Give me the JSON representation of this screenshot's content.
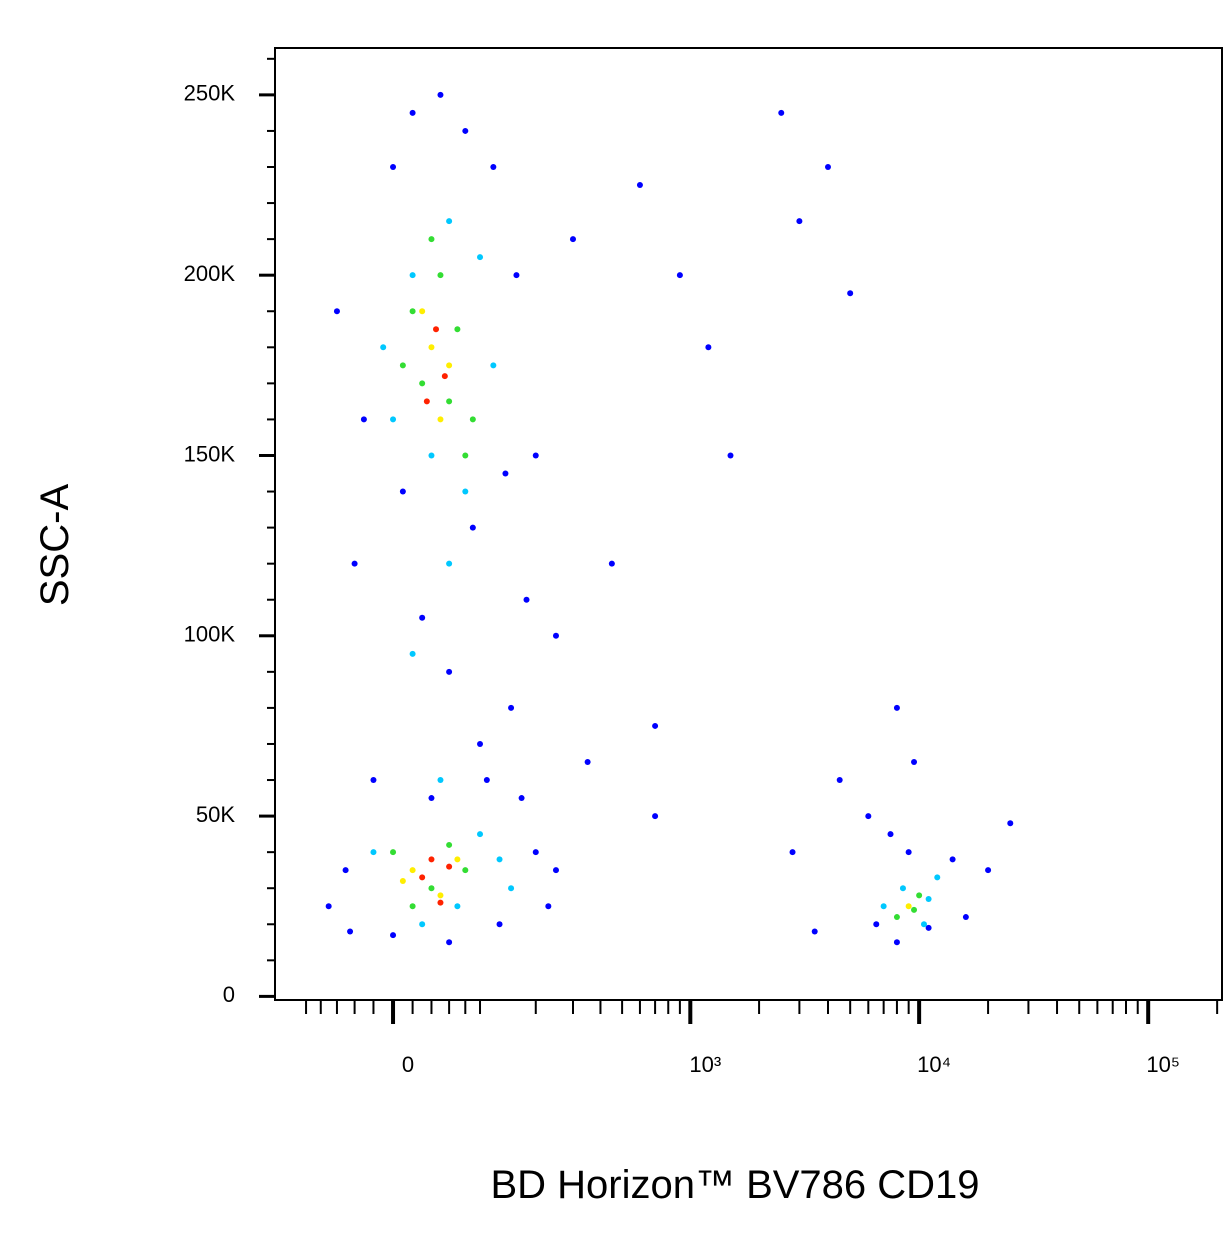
{
  "chart_data": {
    "type": "scatter",
    "x_label": "BD Horizon™ BV786 CD19",
    "y_label": "SSC-A",
    "xscale": "biexponential",
    "xlim": [
      -150,
      210000
    ],
    "ylim": [
      -1000,
      263000
    ],
    "xticks": [
      0,
      {
        "value": 1000,
        "label": "10³"
      },
      {
        "value": 10000,
        "label": "10⁴"
      },
      {
        "value": 100000,
        "label": "10⁵"
      }
    ],
    "xminorticks": [
      -100,
      -80,
      -60,
      -40,
      -20,
      20,
      40,
      60,
      80,
      100,
      200,
      300,
      400,
      500,
      600,
      700,
      800,
      900,
      2000,
      3000,
      4000,
      5000,
      6000,
      7000,
      8000,
      9000,
      20000,
      30000,
      40000,
      50000,
      60000,
      70000,
      80000,
      90000,
      200000
    ],
    "yticks": [
      0,
      {
        "value": 50000,
        "label": "50K"
      },
      {
        "value": 100000,
        "label": "100K"
      },
      {
        "value": 150000,
        "label": "150K"
      },
      {
        "value": 200000,
        "label": "200K"
      },
      {
        "value": 250000,
        "label": "250K"
      }
    ],
    "yminorticks": [
      10000,
      20000,
      30000,
      40000,
      60000,
      70000,
      80000,
      90000,
      110000,
      120000,
      130000,
      140000,
      160000,
      170000,
      180000,
      190000,
      210000,
      220000,
      230000,
      240000,
      260000
    ],
    "series": [
      {
        "color": "#0000ff",
        "x": [
          -60,
          -40,
          -20,
          0,
          20,
          50,
          80,
          120,
          160,
          200,
          180,
          150,
          100,
          60,
          30,
          10,
          -30,
          -50,
          -70,
          200,
          250,
          230,
          130,
          60,
          0,
          -45,
          90,
          140,
          40,
          110,
          170,
          300,
          600,
          900,
          1200,
          3000,
          5000,
          2500,
          4000,
          1500,
          450,
          700,
          2800,
          4500,
          6000,
          7500,
          9000,
          14000,
          20000,
          25000,
          6500,
          11000,
          8000,
          16000,
          3500,
          350,
          700,
          8000,
          9500,
          250
        ],
        "values": [
          190000,
          120000,
          60000,
          230000,
          245000,
          250000,
          240000,
          230000,
          200000,
          150000,
          110000,
          80000,
          70000,
          90000,
          105000,
          140000,
          160000,
          35000,
          25000,
          40000,
          35000,
          25000,
          20000,
          15000,
          17000,
          18000,
          130000,
          145000,
          55000,
          60000,
          55000,
          210000,
          225000,
          200000,
          180000,
          215000,
          195000,
          245000,
          230000,
          150000,
          120000,
          75000,
          40000,
          60000,
          50000,
          45000,
          40000,
          38000,
          35000,
          48000,
          20000,
          19000,
          15000,
          22000,
          18000,
          65000,
          50000,
          80000,
          65000,
          100000
        ]
      },
      {
        "color": "#00c8ff",
        "x": [
          20,
          60,
          100,
          -10,
          120,
          40,
          80,
          -20,
          100,
          150,
          30,
          70,
          130,
          0,
          60,
          8500,
          11000,
          12000,
          7000,
          10500,
          50,
          20
        ],
        "values": [
          200000,
          215000,
          205000,
          180000,
          175000,
          150000,
          140000,
          40000,
          45000,
          30000,
          20000,
          25000,
          38000,
          160000,
          120000,
          30000,
          27000,
          33000,
          25000,
          20000,
          60000,
          95000
        ]
      },
      {
        "color": "#33dd33",
        "x": [
          20,
          50,
          70,
          30,
          90,
          10,
          60,
          0,
          40,
          80,
          20,
          60,
          9500,
          10000,
          8000,
          40,
          80
        ],
        "values": [
          190000,
          200000,
          185000,
          170000,
          160000,
          175000,
          165000,
          40000,
          30000,
          35000,
          25000,
          42000,
          24000,
          28000,
          22000,
          210000,
          150000
        ]
      },
      {
        "color": "#ffee00",
        "x": [
          40,
          60,
          30,
          50,
          20,
          50,
          70,
          9000,
          10
        ],
        "values": [
          180000,
          175000,
          190000,
          160000,
          35000,
          28000,
          38000,
          25000,
          32000
        ]
      },
      {
        "color": "#ff2200",
        "x": [
          45,
          55,
          35,
          40,
          30,
          60,
          50
        ],
        "values": [
          185000,
          172000,
          165000,
          38000,
          33000,
          36000,
          26000
        ]
      }
    ]
  }
}
